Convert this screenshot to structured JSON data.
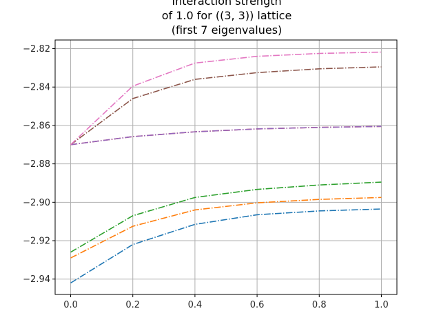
{
  "chart_data": {
    "type": "line",
    "title_lines": [
      "Interaction strength",
      "of 1.0 for ((3, 3)) lattice",
      "(first 7 eigenvalues)"
    ],
    "xlabel": "",
    "ylabel": "",
    "xlim": [
      -0.05,
      1.05
    ],
    "ylim": [
      -2.948,
      -2.8155
    ],
    "grid": true,
    "x": [
      0.0,
      0.2,
      0.4,
      0.6,
      0.8,
      1.0
    ],
    "x_ticks": [
      "0.0",
      "0.2",
      "0.4",
      "0.6",
      "0.8",
      "1.0"
    ],
    "y_ticks": [
      -2.94,
      -2.92,
      -2.9,
      -2.88,
      -2.86,
      -2.84,
      -2.82
    ],
    "y_tick_labels": [
      "−2.94",
      "−2.92",
      "−2.90",
      "−2.88",
      "−2.86",
      "−2.84",
      "−2.82"
    ],
    "series": [
      {
        "color": "#1f77b4",
        "values": [
          -2.942,
          -2.922,
          -2.9115,
          -2.9065,
          -2.9045,
          -2.9035
        ]
      },
      {
        "color": "#ff7f0e",
        "values": [
          -2.929,
          -2.9125,
          -2.904,
          -2.9003,
          -2.8985,
          -2.8975
        ]
      },
      {
        "color": "#2ca02c",
        "values": [
          -2.926,
          -2.907,
          -2.8975,
          -2.8933,
          -2.891,
          -2.8895
        ]
      },
      {
        "color": "#d62728",
        "values": [
          -2.87,
          -2.8658,
          -2.8633,
          -2.8618,
          -2.861,
          -2.8605
        ]
      },
      {
        "color": "#9467bd",
        "values": [
          -2.87,
          -2.8658,
          -2.8633,
          -2.8618,
          -2.861,
          -2.8605
        ]
      },
      {
        "color": "#8c564b",
        "values": [
          -2.87,
          -2.846,
          -2.836,
          -2.8325,
          -2.8305,
          -2.8295
        ]
      },
      {
        "color": "#e377c2",
        "values": [
          -2.87,
          -2.8395,
          -2.8275,
          -2.824,
          -2.8225,
          -2.8218
        ]
      }
    ]
  }
}
